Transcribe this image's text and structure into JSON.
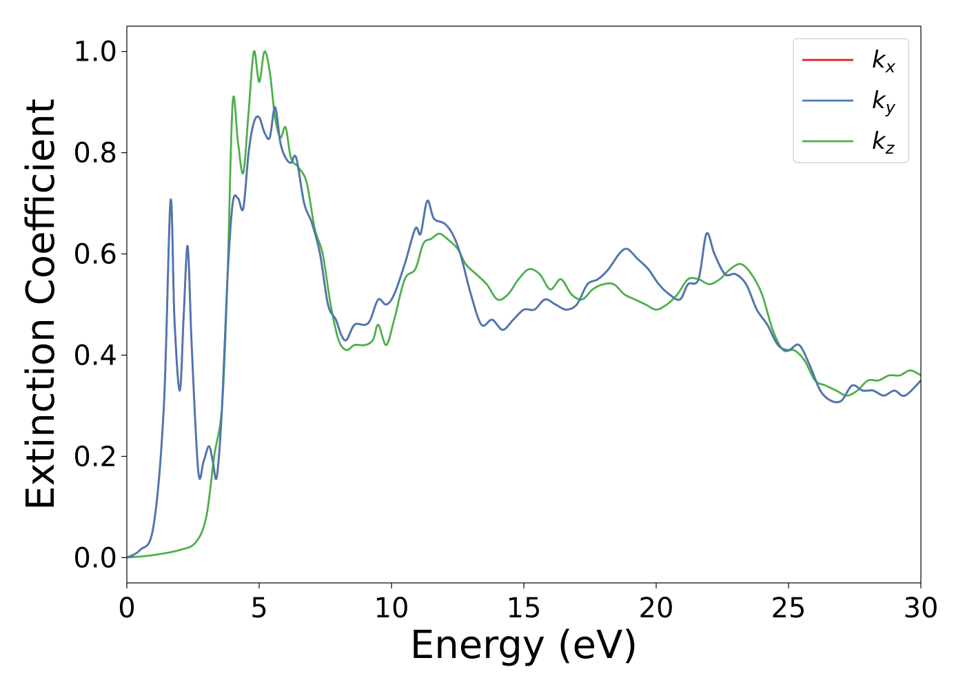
{
  "chart_data": {
    "type": "line",
    "title": "",
    "xlabel": "Energy (eV)",
    "ylabel": "Extinction Coefficient",
    "xlim": [
      0,
      30
    ],
    "ylim": [
      -0.05,
      1.05
    ],
    "xticks": [
      "0",
      "5",
      "10",
      "15",
      "20",
      "25",
      "30"
    ],
    "xtick_values": [
      0,
      5,
      10,
      15,
      20,
      25,
      30
    ],
    "yticks": [
      "0.0",
      "0.2",
      "0.4",
      "0.6",
      "0.8",
      "1.0"
    ],
    "ytick_values": [
      0.0,
      0.2,
      0.4,
      0.6,
      0.8,
      1.0
    ],
    "grid": false,
    "legend_position": "top-right",
    "series": [
      {
        "name": "k",
        "subscript": "x",
        "color": "#e41a1c",
        "x": [
          0,
          0.5,
          1.0,
          1.4,
          1.65,
          1.8,
          2.0,
          2.15,
          2.3,
          2.45,
          2.7,
          2.9,
          3.1,
          3.25,
          3.4,
          3.6,
          3.8,
          4.0,
          4.2,
          4.4,
          4.6,
          4.8,
          5.0,
          5.2,
          5.4,
          5.6,
          5.8,
          6.0,
          6.2,
          6.4,
          6.7,
          7.0,
          7.3,
          7.6,
          7.9,
          8.1,
          8.3,
          8.6,
          9.0,
          9.2,
          9.5,
          9.8,
          10.1,
          10.5,
          10.9,
          11.1,
          11.35,
          11.6,
          12.0,
          12.3,
          12.6,
          13.0,
          13.4,
          13.8,
          14.2,
          14.6,
          15.0,
          15.4,
          15.8,
          16.2,
          16.6,
          17.0,
          17.4,
          17.8,
          18.2,
          18.6,
          18.9,
          19.3,
          19.7,
          20.1,
          20.5,
          20.9,
          21.2,
          21.6,
          21.9,
          22.2,
          22.6,
          23.0,
          23.4,
          23.8,
          24.2,
          24.6,
          25.0,
          25.4,
          25.8,
          26.2,
          26.6,
          27.0,
          27.4,
          27.8,
          28.2,
          28.6,
          29.0,
          29.4,
          30.0
        ],
        "y": [
          0.0,
          0.015,
          0.06,
          0.3,
          0.705,
          0.47,
          0.33,
          0.48,
          0.615,
          0.42,
          0.17,
          0.19,
          0.22,
          0.19,
          0.16,
          0.3,
          0.55,
          0.7,
          0.71,
          0.69,
          0.8,
          0.86,
          0.87,
          0.84,
          0.83,
          0.89,
          0.82,
          0.79,
          0.78,
          0.79,
          0.7,
          0.66,
          0.6,
          0.5,
          0.47,
          0.44,
          0.43,
          0.46,
          0.46,
          0.47,
          0.51,
          0.5,
          0.52,
          0.58,
          0.65,
          0.64,
          0.705,
          0.67,
          0.66,
          0.64,
          0.6,
          0.52,
          0.46,
          0.47,
          0.45,
          0.47,
          0.49,
          0.49,
          0.51,
          0.5,
          0.49,
          0.5,
          0.54,
          0.55,
          0.57,
          0.6,
          0.61,
          0.59,
          0.57,
          0.54,
          0.52,
          0.51,
          0.54,
          0.55,
          0.64,
          0.6,
          0.56,
          0.56,
          0.54,
          0.49,
          0.46,
          0.42,
          0.41,
          0.42,
          0.38,
          0.33,
          0.31,
          0.31,
          0.34,
          0.33,
          0.33,
          0.32,
          0.33,
          0.32,
          0.35
        ]
      },
      {
        "name": "k",
        "subscript": "y",
        "color": "#4a78b3",
        "x": [
          0,
          0.5,
          1.0,
          1.4,
          1.65,
          1.8,
          2.0,
          2.15,
          2.3,
          2.45,
          2.7,
          2.9,
          3.1,
          3.25,
          3.4,
          3.6,
          3.8,
          4.0,
          4.2,
          4.4,
          4.6,
          4.8,
          5.0,
          5.2,
          5.4,
          5.6,
          5.8,
          6.0,
          6.2,
          6.4,
          6.7,
          7.0,
          7.3,
          7.6,
          7.9,
          8.1,
          8.3,
          8.6,
          9.0,
          9.2,
          9.5,
          9.8,
          10.1,
          10.5,
          10.9,
          11.1,
          11.35,
          11.6,
          12.0,
          12.3,
          12.6,
          13.0,
          13.4,
          13.8,
          14.2,
          14.6,
          15.0,
          15.4,
          15.8,
          16.2,
          16.6,
          17.0,
          17.4,
          17.8,
          18.2,
          18.6,
          18.9,
          19.3,
          19.7,
          20.1,
          20.5,
          20.9,
          21.2,
          21.6,
          21.9,
          22.2,
          22.6,
          23.0,
          23.4,
          23.8,
          24.2,
          24.6,
          25.0,
          25.4,
          25.8,
          26.2,
          26.6,
          27.0,
          27.4,
          27.8,
          28.2,
          28.6,
          29.0,
          29.4,
          30.0
        ],
        "y": [
          0.0,
          0.015,
          0.06,
          0.3,
          0.705,
          0.47,
          0.33,
          0.48,
          0.615,
          0.42,
          0.17,
          0.19,
          0.22,
          0.19,
          0.16,
          0.3,
          0.55,
          0.7,
          0.71,
          0.69,
          0.8,
          0.86,
          0.87,
          0.84,
          0.83,
          0.89,
          0.82,
          0.79,
          0.78,
          0.79,
          0.7,
          0.66,
          0.6,
          0.5,
          0.47,
          0.44,
          0.43,
          0.46,
          0.46,
          0.47,
          0.51,
          0.5,
          0.52,
          0.58,
          0.65,
          0.64,
          0.705,
          0.67,
          0.66,
          0.64,
          0.6,
          0.52,
          0.46,
          0.47,
          0.45,
          0.47,
          0.49,
          0.49,
          0.51,
          0.5,
          0.49,
          0.5,
          0.54,
          0.55,
          0.57,
          0.6,
          0.61,
          0.59,
          0.57,
          0.54,
          0.52,
          0.51,
          0.54,
          0.55,
          0.64,
          0.6,
          0.56,
          0.56,
          0.54,
          0.49,
          0.46,
          0.42,
          0.41,
          0.42,
          0.38,
          0.33,
          0.31,
          0.31,
          0.34,
          0.33,
          0.33,
          0.32,
          0.33,
          0.32,
          0.35
        ]
      },
      {
        "name": "k",
        "subscript": "z",
        "color": "#4daf4a",
        "x": [
          0,
          1.0,
          2.0,
          2.6,
          3.0,
          3.3,
          3.6,
          3.8,
          4.0,
          4.2,
          4.4,
          4.6,
          4.8,
          5.0,
          5.2,
          5.4,
          5.6,
          5.8,
          6.0,
          6.2,
          6.5,
          6.8,
          7.1,
          7.4,
          7.7,
          8.0,
          8.3,
          8.6,
          9.0,
          9.3,
          9.5,
          9.8,
          10.1,
          10.5,
          10.9,
          11.2,
          11.5,
          11.8,
          12.1,
          12.5,
          12.8,
          13.2,
          13.6,
          14.0,
          14.4,
          14.8,
          15.2,
          15.6,
          16.0,
          16.4,
          16.8,
          17.2,
          17.6,
          18.0,
          18.4,
          18.8,
          19.2,
          19.6,
          20.0,
          20.4,
          20.8,
          21.2,
          21.6,
          22.0,
          22.4,
          22.8,
          23.2,
          23.6,
          24.0,
          24.4,
          24.8,
          25.2,
          25.6,
          26.0,
          26.4,
          26.8,
          27.2,
          27.6,
          28.0,
          28.4,
          28.8,
          29.2,
          29.6,
          30.0
        ],
        "y": [
          0.0,
          0.005,
          0.015,
          0.03,
          0.08,
          0.2,
          0.3,
          0.55,
          0.9,
          0.82,
          0.76,
          0.88,
          1.0,
          0.94,
          1.0,
          0.96,
          0.87,
          0.83,
          0.85,
          0.79,
          0.77,
          0.74,
          0.65,
          0.6,
          0.5,
          0.43,
          0.41,
          0.42,
          0.42,
          0.43,
          0.46,
          0.42,
          0.47,
          0.55,
          0.57,
          0.62,
          0.63,
          0.64,
          0.63,
          0.61,
          0.58,
          0.56,
          0.54,
          0.51,
          0.52,
          0.55,
          0.57,
          0.56,
          0.53,
          0.55,
          0.52,
          0.51,
          0.53,
          0.54,
          0.54,
          0.52,
          0.51,
          0.5,
          0.49,
          0.5,
          0.52,
          0.55,
          0.55,
          0.54,
          0.55,
          0.57,
          0.58,
          0.56,
          0.52,
          0.45,
          0.41,
          0.41,
          0.39,
          0.35,
          0.34,
          0.33,
          0.32,
          0.33,
          0.35,
          0.35,
          0.36,
          0.36,
          0.37,
          0.36
        ]
      }
    ]
  }
}
